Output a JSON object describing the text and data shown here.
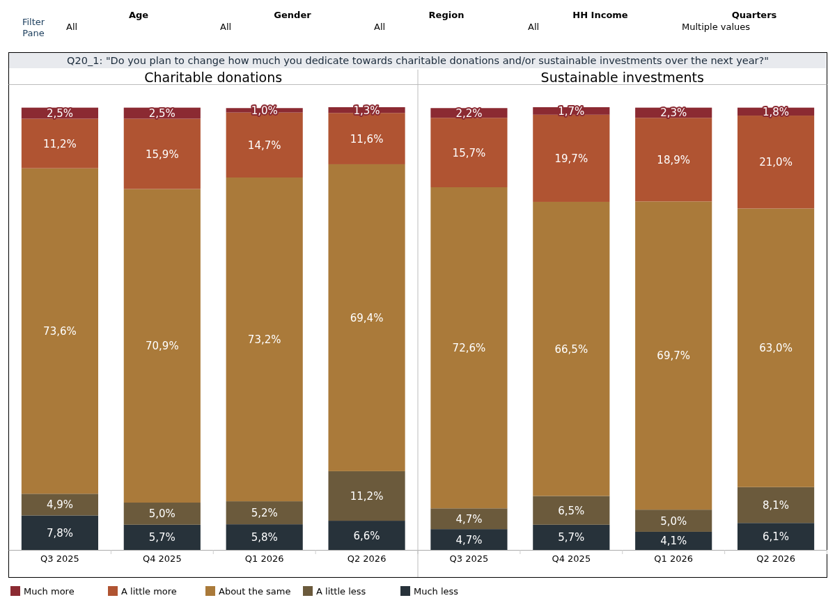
{
  "chart_data": [
    {
      "type": "other",
      "title": "Q20_1: \"Do you plan to change how much you dedicate towards charitable donations and/or sustainable investments over the next year?\"",
      "annotations": [
        "Filter Pane",
        "Age",
        "All",
        "Gender",
        "All",
        "Region",
        "All",
        "HH Income",
        "All",
        "Quarters",
        "Multiple values"
      ]
    },
    {
      "type": "bar",
      "stacked": true,
      "title": "Charitable donations",
      "categories": [
        "Q3 2025",
        "Q4 2025",
        "Q1 2026",
        "Q2 2026"
      ],
      "legend": "bottom",
      "series": [
        {
          "name": "Much less",
          "color": "#27323a",
          "values": [
            7.8,
            5.7,
            5.8,
            6.6
          ],
          "value_labels": [
            "7,8%",
            "5,7%",
            "5,8%",
            "6,6%"
          ]
        },
        {
          "name": "A little less",
          "color": "#6b5a3c",
          "values": [
            4.9,
            5.0,
            5.2,
            11.2
          ],
          "value_labels": [
            "4,9%",
            "5,0%",
            "5,2%",
            "11,2%"
          ]
        },
        {
          "name": "About the same",
          "color": "#aa7a3a",
          "values": [
            73.6,
            70.9,
            73.2,
            69.4
          ],
          "value_labels": [
            "73,6%",
            "70,9%",
            "73,2%",
            "69,4%"
          ]
        },
        {
          "name": "A little more",
          "color": "#b05432",
          "values": [
            11.2,
            15.9,
            14.7,
            11.6
          ],
          "value_labels": [
            "11,2%",
            "15,9%",
            "14,7%",
            "11,6%"
          ]
        },
        {
          "name": "Much more",
          "color": "#8b2a32",
          "values": [
            2.5,
            2.5,
            1.0,
            1.3
          ],
          "value_labels": [
            "2,5%",
            "2,5%",
            "1,0%",
            "1,3%"
          ]
        }
      ]
    },
    {
      "type": "bar",
      "stacked": true,
      "title": "Sustainable investments",
      "categories": [
        "Q3 2025",
        "Q4 2025",
        "Q1 2026",
        "Q2 2026"
      ],
      "series": [
        {
          "color": "#27323a",
          "values": [
            4.7,
            5.7,
            4.1,
            6.1
          ],
          "value_labels": [
            "4,7%",
            "5,7%",
            "4,1%",
            "6,1%"
          ]
        },
        {
          "color": "#6b5a3c",
          "values": [
            4.7,
            6.5,
            5.0,
            8.1
          ],
          "value_labels": [
            "4,7%",
            "6,5%",
            "5,0%",
            "8,1%"
          ]
        },
        {
          "color": "#aa7a3a",
          "values": [
            72.6,
            66.5,
            69.7,
            63.0
          ],
          "value_labels": [
            "72,6%",
            "66,5%",
            "69,7%",
            "63,0%"
          ]
        },
        {
          "color": "#b05432",
          "values": [
            15.7,
            19.7,
            18.9,
            21.0
          ],
          "value_labels": [
            "15,7%",
            "19,7%",
            "18,9%",
            "21,0%"
          ]
        },
        {
          "color": "#8b2a32",
          "values": [
            2.2,
            1.7,
            2.3,
            1.8
          ],
          "value_labels": [
            "2,2%",
            "1,7%",
            "2,3%",
            "1,8%"
          ]
        }
      ]
    }
  ]
}
